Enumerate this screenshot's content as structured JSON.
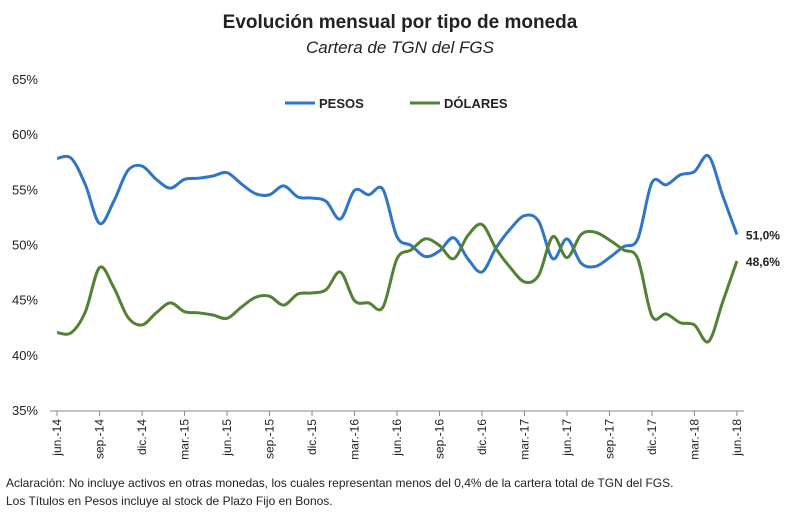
{
  "chart_data": {
    "type": "line",
    "title": "Evolución mensual por tipo de moneda",
    "subtitle": "Cartera de TGN del FGS",
    "categories": [
      "jun.-14",
      null,
      null,
      "sep.-14",
      null,
      null,
      "dic.-14",
      null,
      null,
      "mar.-15",
      null,
      null,
      "jun.-15",
      null,
      null,
      "sep.-15",
      null,
      null,
      "dic.-15",
      null,
      null,
      "mar.-16",
      null,
      null,
      "jun.-16",
      null,
      null,
      "sep.-16",
      null,
      null,
      "dic.-16",
      null,
      null,
      "mar.-17",
      null,
      null,
      "jun.-17",
      null,
      null,
      "sep.-17",
      null,
      null,
      "dic.-17",
      null,
      null,
      "mar.-18",
      null,
      null,
      "jun.-18"
    ],
    "series": [
      {
        "name": "PESOS",
        "color": "#2f75c8",
        "values": [
          57.9,
          57.9,
          55.5,
          52.0,
          54.0,
          56.8,
          57.2,
          56.0,
          55.2,
          56.0,
          56.1,
          56.3,
          56.6,
          55.6,
          54.7,
          54.6,
          55.4,
          54.4,
          54.3,
          54.0,
          52.4,
          55.0,
          54.6,
          55.1,
          50.8,
          50.0,
          49.0,
          49.5,
          50.7,
          48.8,
          47.6,
          49.8,
          51.5,
          52.7,
          52.2,
          48.8,
          50.6,
          48.4,
          48.1,
          48.9,
          49.9,
          50.6,
          55.7,
          55.5,
          56.4,
          56.7,
          58.1,
          54.5,
          51.0
        ],
        "value_labels": [
          null,
          null,
          null,
          null,
          null,
          null,
          null,
          null,
          null,
          null,
          null,
          null,
          null,
          null,
          null,
          null,
          null,
          null,
          null,
          null,
          null,
          null,
          null,
          null,
          null,
          null,
          null,
          null,
          null,
          null,
          null,
          null,
          null,
          null,
          null,
          null,
          null,
          null,
          null,
          null,
          null,
          null,
          null,
          null,
          null,
          null,
          null,
          null,
          "51,0%"
        ]
      },
      {
        "name": "DÓLARES",
        "color": "#538135",
        "values": [
          42.1,
          42.1,
          44.0,
          48.0,
          46.2,
          43.5,
          42.8,
          43.9,
          44.8,
          44.0,
          43.9,
          43.7,
          43.4,
          44.4,
          45.3,
          45.4,
          44.6,
          45.6,
          45.7,
          46.0,
          47.6,
          45.0,
          44.8,
          44.4,
          48.8,
          49.6,
          50.6,
          50.0,
          48.8,
          50.9,
          51.9,
          49.7,
          48.0,
          46.7,
          47.3,
          50.8,
          48.9,
          51.0,
          51.2,
          50.5,
          49.6,
          48.8,
          43.6,
          43.8,
          43.0,
          42.8,
          41.3,
          44.9,
          48.6
        ],
        "value_labels": [
          null,
          null,
          null,
          null,
          null,
          null,
          null,
          null,
          null,
          null,
          null,
          null,
          null,
          null,
          null,
          null,
          null,
          null,
          null,
          null,
          null,
          null,
          null,
          null,
          null,
          null,
          null,
          null,
          null,
          null,
          null,
          null,
          null,
          null,
          null,
          null,
          null,
          null,
          null,
          null,
          null,
          null,
          null,
          null,
          null,
          null,
          null,
          null,
          "48,6%"
        ]
      }
    ],
    "ylim": [
      35,
      65
    ],
    "yticks": [
      {
        "value": 35,
        "label": "35%"
      },
      {
        "value": 40,
        "label": "40%"
      },
      {
        "value": 45,
        "label": "45%"
      },
      {
        "value": 50,
        "label": "50%"
      },
      {
        "value": 55,
        "label": "55%"
      },
      {
        "value": 60,
        "label": "60%"
      },
      {
        "value": 65,
        "label": "65%"
      }
    ],
    "grid": false,
    "legend": "top",
    "notes": [
      "Aclaración: No incluye activos en otras monedas, los cuales representan menos del 0,4% de la cartera total de TGN del FGS.",
      "Los Títulos en Pesos incluye al stock de Plazo Fijo en Bonos."
    ]
  }
}
